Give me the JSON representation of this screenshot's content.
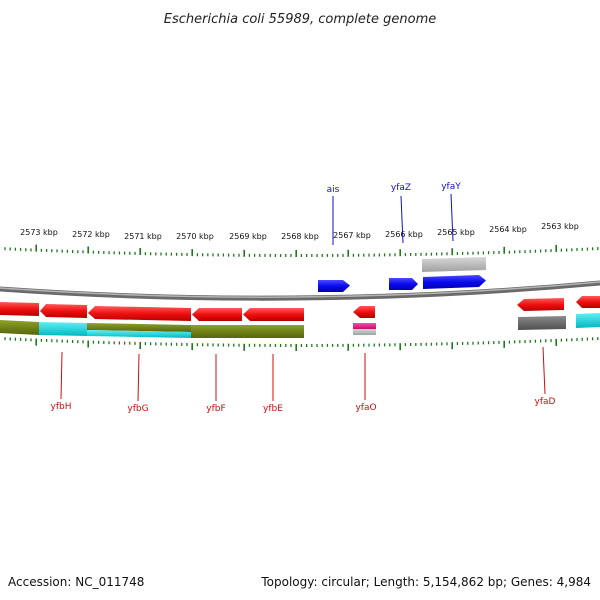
{
  "title": "Escherichia coli 55989, complete genome",
  "footer": {
    "accession": "Accession: NC_011748",
    "summary": "Topology: circular; Length: 5,154,862 bp; Genes: 4,984"
  },
  "colors": {
    "forward_gene": "#0a0aee",
    "reverse_gene": "#ee1010",
    "backbone": "#8a8a8a",
    "tick": "#1f7a1f",
    "olive": "#6b7d12",
    "cyan": "#00d8e0",
    "magenta": "#e0188a",
    "gray_block": "#b4b4b4",
    "dark_gray_block": "#6a6a6a",
    "forward_label": "#1010c8",
    "reverse_label": "#c81010"
  },
  "scale_labels": [
    "2573 kbp",
    "2572 kbp",
    "2571 kbp",
    "2570 kbp",
    "2569 kbp",
    "2568 kbp",
    "2567 kbp",
    "2566 kbp",
    "2565 kbp",
    "2564 kbp",
    "2563 kbp"
  ],
  "forward_genes": [
    {
      "name": "ais"
    },
    {
      "name": "yfaZ"
    },
    {
      "name": "yfaY"
    }
  ],
  "reverse_genes": [
    {
      "name": "yfbH"
    },
    {
      "name": "yfbG"
    },
    {
      "name": "yfbF"
    },
    {
      "name": "yfbE"
    },
    {
      "name": "yfaO"
    },
    {
      "name": "yfaD"
    }
  ]
}
